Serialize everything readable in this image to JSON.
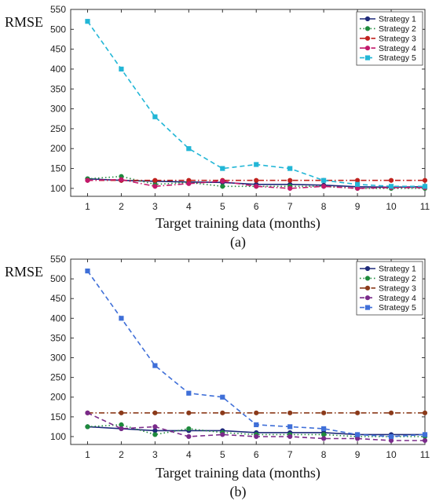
{
  "chart_data": [
    {
      "type": "line",
      "ylabel": "RMSE",
      "xlabel": "Target training data (months)",
      "panel_label": "(a)",
      "x": [
        1,
        2,
        3,
        4,
        5,
        6,
        7,
        8,
        9,
        10,
        11
      ],
      "xlim": [
        0.5,
        11
      ],
      "ylim": [
        80,
        550
      ],
      "yticks": [
        100,
        150,
        200,
        250,
        300,
        350,
        400,
        450,
        500,
        550
      ],
      "grid": false,
      "legend_position": "top-right",
      "series": [
        {
          "name": "Strategy 1",
          "color": "#1f2a7a",
          "dash": "solid",
          "marker": "circle",
          "values": [
            124,
            120,
            118,
            116,
            115,
            110,
            110,
            108,
            104,
            103,
            104
          ]
        },
        {
          "name": "Strategy 2",
          "color": "#1e8a3c",
          "dash": "dotted",
          "marker": "circle",
          "values": [
            124,
            130,
            110,
            115,
            105,
            105,
            105,
            105,
            100,
            100,
            100
          ]
        },
        {
          "name": "Strategy 3",
          "color": "#c0221e",
          "dash": "dashdot",
          "marker": "circle",
          "values": [
            120,
            120,
            120,
            120,
            120,
            120,
            120,
            120,
            120,
            120,
            120
          ]
        },
        {
          "name": "Strategy 4",
          "color": "#c2186b",
          "dash": "dashdot",
          "marker": "circle",
          "values": [
            120,
            122,
            105,
            112,
            118,
            105,
            100,
            105,
            100,
            102,
            102
          ]
        },
        {
          "name": "Strategy 5",
          "color": "#22b6d6",
          "dash": "dashed",
          "marker": "square",
          "values": [
            520,
            400,
            280,
            200,
            150,
            160,
            150,
            120,
            110,
            105,
            105
          ]
        }
      ]
    },
    {
      "type": "line",
      "ylabel": "RMSE",
      "xlabel": "Target training data (months)",
      "panel_label": "(b)",
      "x": [
        1,
        2,
        3,
        4,
        5,
        6,
        7,
        8,
        9,
        10,
        11
      ],
      "xlim": [
        0.5,
        11
      ],
      "ylim": [
        80,
        550
      ],
      "yticks": [
        100,
        150,
        200,
        250,
        300,
        350,
        400,
        450,
        500,
        550
      ],
      "grid": false,
      "legend_position": "top-right",
      "series": [
        {
          "name": "Strategy 1",
          "color": "#1f2a7a",
          "dash": "solid",
          "marker": "circle",
          "values": [
            125,
            120,
            115,
            115,
            115,
            110,
            110,
            110,
            105,
            105,
            105
          ]
        },
        {
          "name": "Strategy 2",
          "color": "#1e8a3c",
          "dash": "dotted",
          "marker": "circle",
          "values": [
            125,
            130,
            105,
            120,
            110,
            105,
            105,
            105,
            100,
            100,
            100
          ]
        },
        {
          "name": "Strategy 3",
          "color": "#8b3a1a",
          "dash": "dashdot",
          "marker": "circle",
          "values": [
            160,
            160,
            160,
            160,
            160,
            160,
            160,
            160,
            160,
            160,
            160
          ]
        },
        {
          "name": "Strategy 4",
          "color": "#7a2a8a",
          "dash": "dashed",
          "marker": "circle",
          "values": [
            160,
            120,
            125,
            100,
            105,
            100,
            100,
            95,
            95,
            90,
            90
          ]
        },
        {
          "name": "Strategy 5",
          "color": "#3f6fd8",
          "dash": "dashed",
          "marker": "square",
          "values": [
            520,
            400,
            280,
            210,
            200,
            130,
            125,
            120,
            105,
            100,
            105
          ]
        }
      ]
    }
  ]
}
